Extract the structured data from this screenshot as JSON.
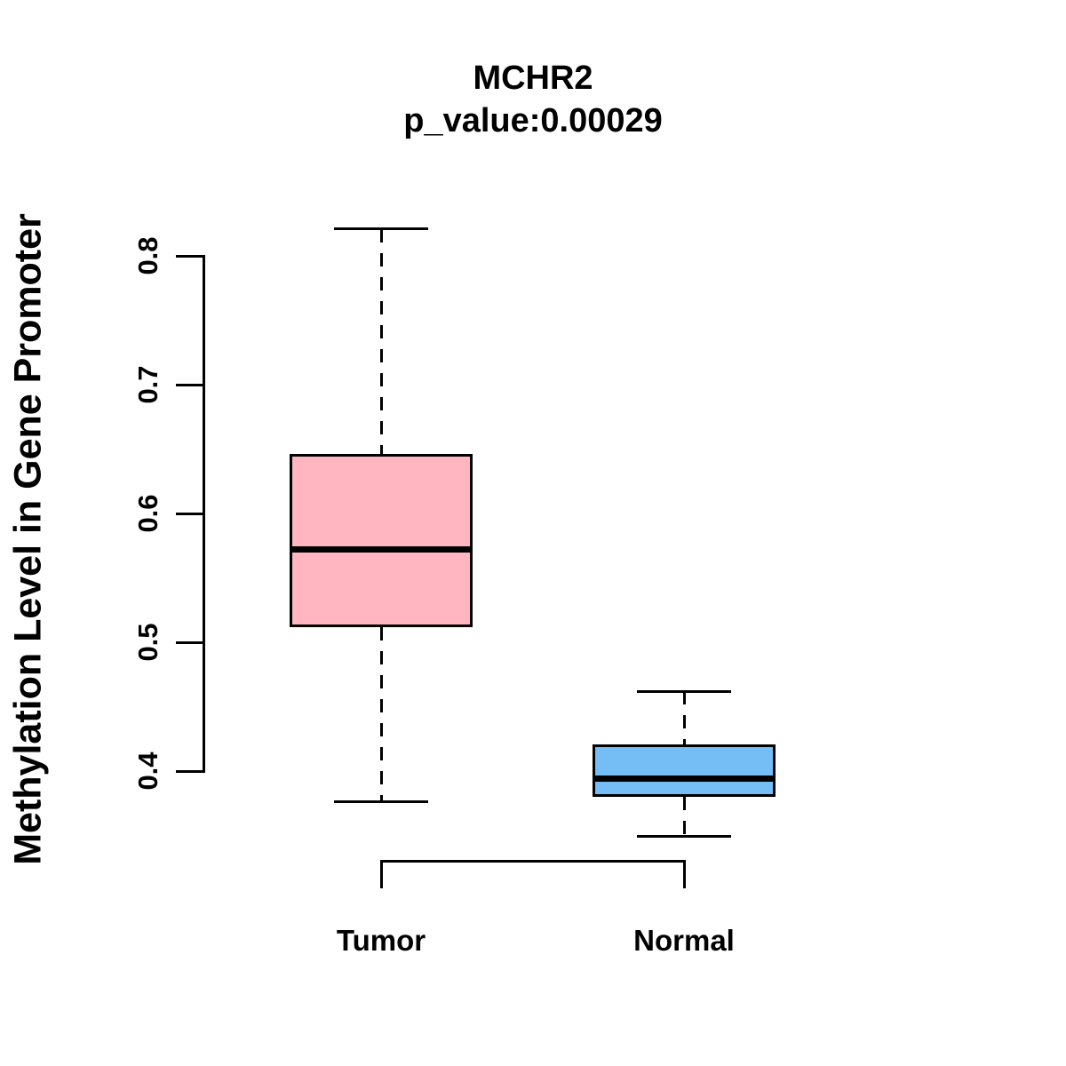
{
  "figure": {
    "title": "MCHR2",
    "subtitle": "p_value:0.00029",
    "ylabel": "Methylation Level in Gene Promoter"
  },
  "chart_data": {
    "type": "boxplot",
    "title": "MCHR2",
    "subtitle": "p_value:0.00029",
    "gene": "MCHR2",
    "p_value": "0.00029",
    "xlabel": "",
    "ylabel": "Methylation Level in Gene Promoter",
    "categories": [
      "Tumor",
      "Normal"
    ],
    "ytick_labels": [
      "0.4",
      "0.5",
      "0.6",
      "0.7",
      "0.8"
    ],
    "yticks": [
      0.4,
      0.5,
      0.6,
      0.7,
      0.8
    ],
    "ylim": [
      0.335,
      0.825
    ],
    "grid": false,
    "legend_position": "none",
    "line_color": "#000000",
    "series": [
      {
        "name": "Tumor",
        "color": "#FFB6C1",
        "whisker_low": 0.376,
        "q1": 0.512,
        "median": 0.572,
        "q3": 0.646,
        "whisker_high": 0.821
      },
      {
        "name": "Normal",
        "color": "#74BEF5",
        "whisker_low": 0.349,
        "q1": 0.38,
        "median": 0.394,
        "q3": 0.421,
        "whisker_high": 0.462
      }
    ]
  }
}
